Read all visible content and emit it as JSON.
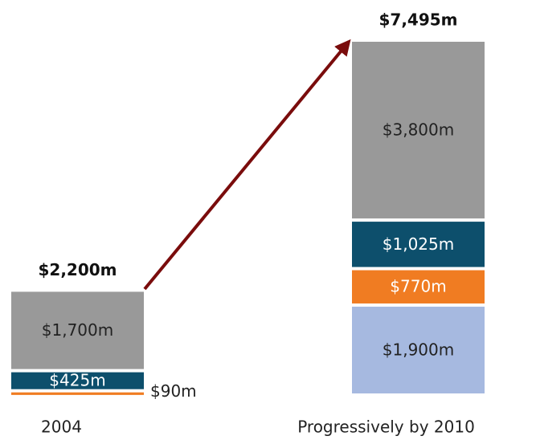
{
  "chart_data": {
    "type": "stacked-bar",
    "categories": [
      "2004",
      "Progressively by 2010"
    ],
    "series": [
      {
        "color": "#a6b9e0",
        "values": [
          null,
          1900
        ],
        "value_labels": [
          null,
          "$1,900m"
        ]
      },
      {
        "color": "#f07c22",
        "values": [
          90,
          770
        ],
        "value_labels": [
          "$90m",
          "$770m"
        ]
      },
      {
        "color": "#0d4f6c",
        "values": [
          425,
          1025
        ],
        "value_labels": [
          "$425m",
          "$1,025m"
        ]
      },
      {
        "color": "#999999",
        "values": [
          1700,
          3800
        ],
        "value_labels": [
          "$1,700m",
          "$3,800m"
        ]
      }
    ],
    "totals": {
      "values": [
        2200,
        7495
      ],
      "value_labels": [
        "$2,200m",
        "$7,495m"
      ]
    }
  }
}
